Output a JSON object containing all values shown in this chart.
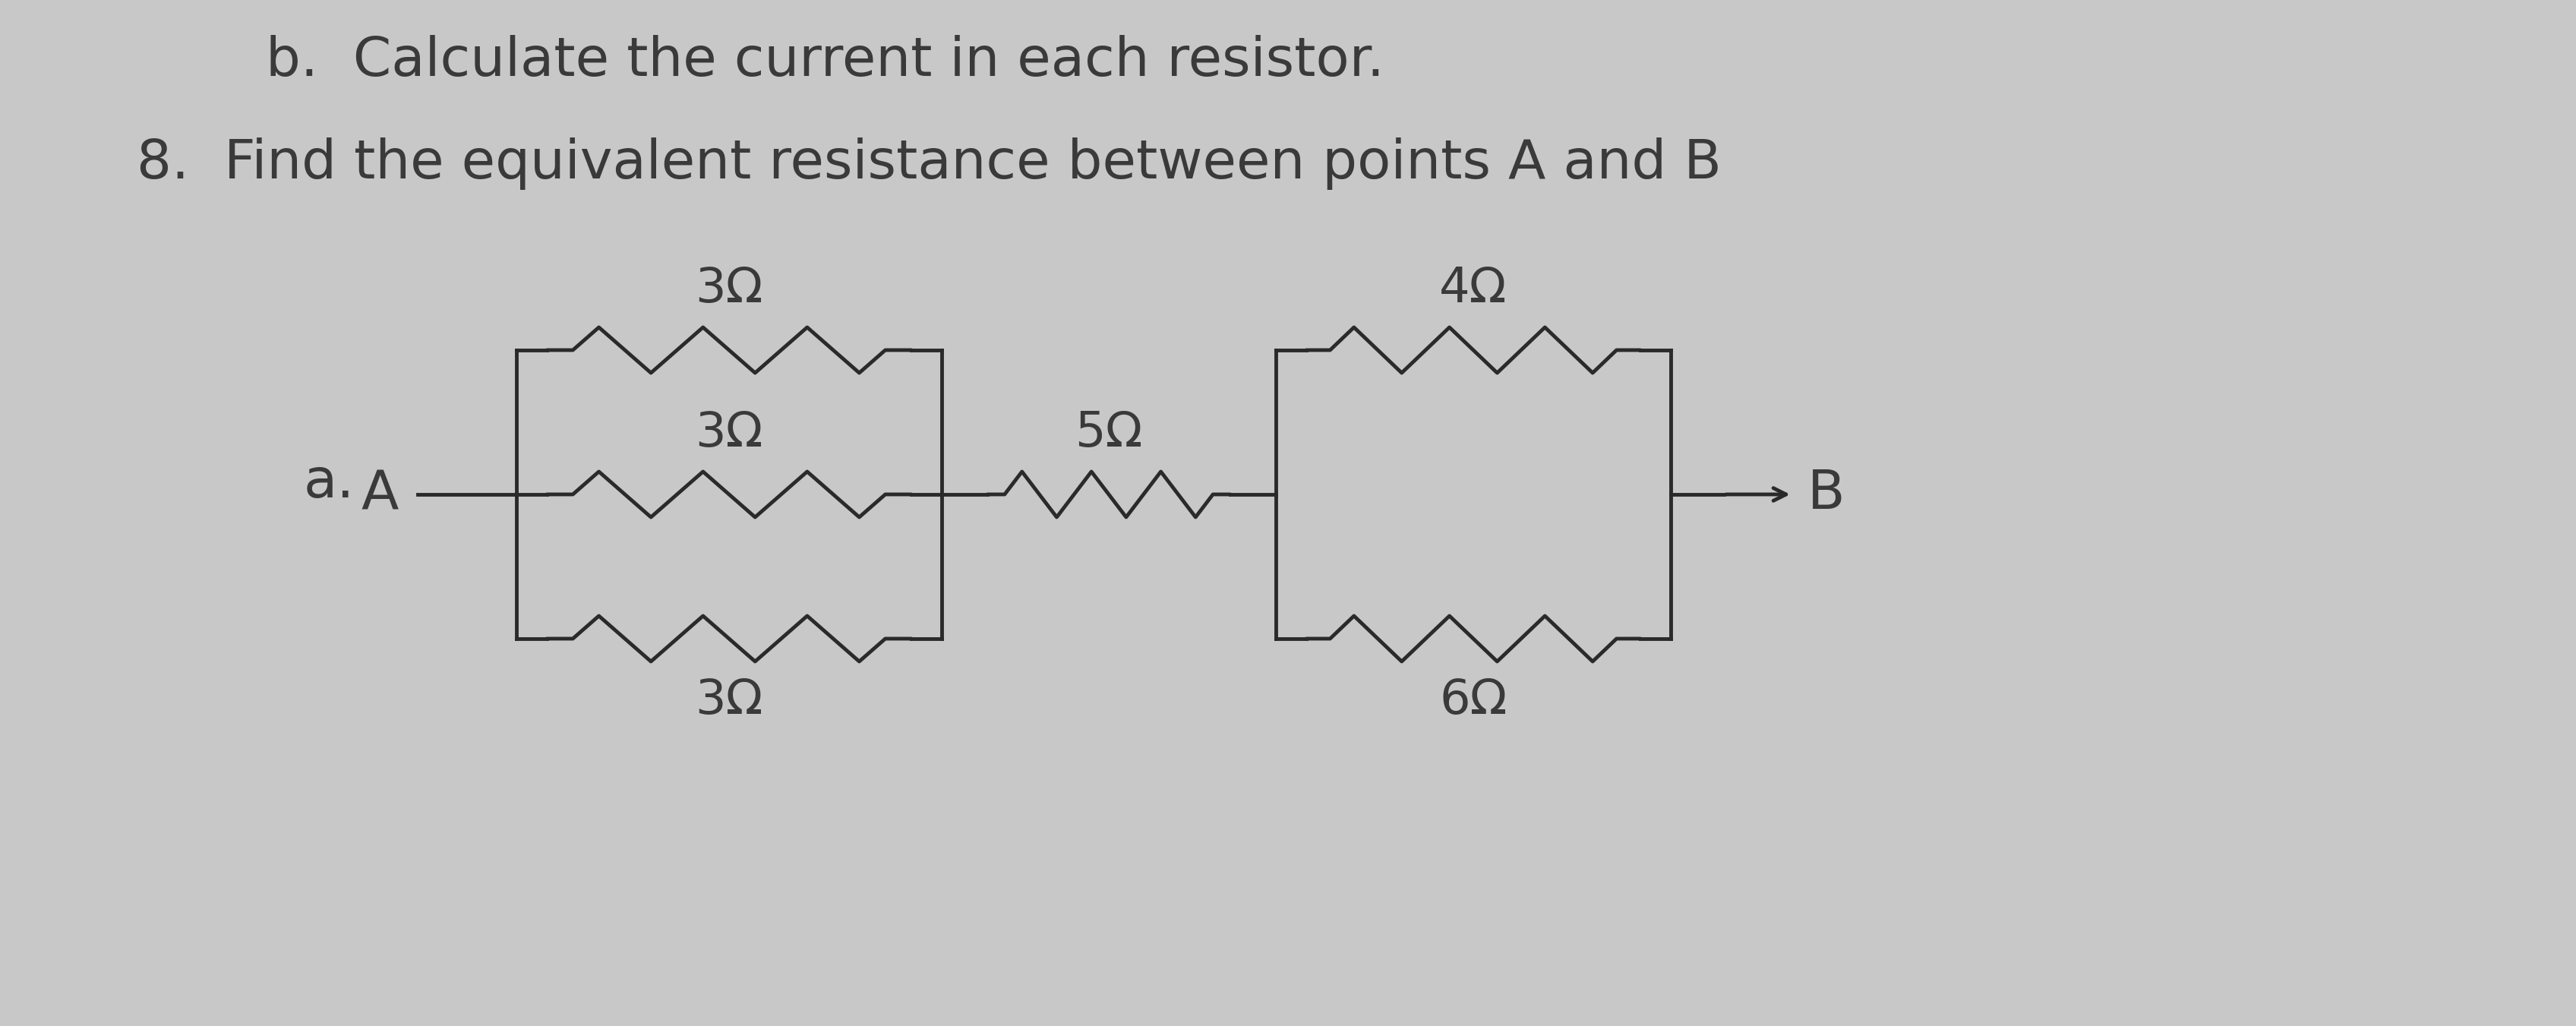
{
  "bg_color": "#c8c8c8",
  "text_color": "#3a3a3a",
  "line_color": "#2a2a2a",
  "title_b": "b.  Calculate the current in each resistor.",
  "title_8": "8.  Find the equivalent resistance between points A and B",
  "label_a": "a.",
  "label_A": "A",
  "label_B": "B",
  "res_top_left": "3Ω",
  "res_mid_left": "3Ω",
  "res_bot_left": "3Ω",
  "res_series": "5Ω",
  "res_top_right": "4Ω",
  "res_bot_right": "6Ω",
  "font_size_title": 52,
  "font_size_label_a": 52,
  "font_size_AB": 52,
  "font_size_resistor": 46,
  "figw": 33.92,
  "figh": 13.51
}
